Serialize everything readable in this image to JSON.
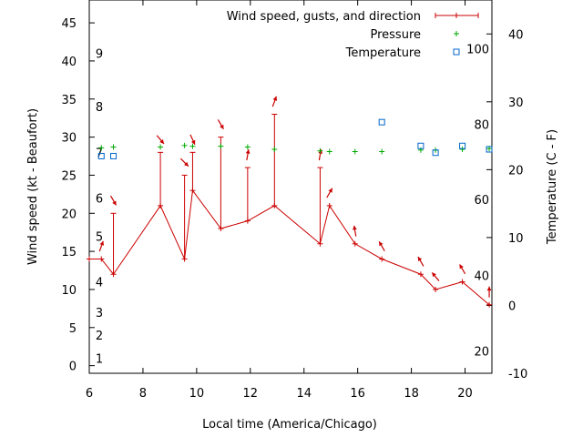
{
  "chart_data": {
    "type": "line",
    "xlabel": "Local time (America/Chicago)",
    "ylabel_left": "Wind speed (kt - Beaufort)",
    "ylabel_right": "Temperature (C - F)",
    "x_range": [
      6,
      21
    ],
    "x_ticks": [
      "6",
      "8",
      "10",
      "12",
      "14",
      "16",
      "18",
      "20"
    ],
    "y_left_range": [
      -1,
      48
    ],
    "y_left_ticks": [
      "0",
      "5",
      "10",
      "15",
      "20",
      "25",
      "30",
      "35",
      "40",
      "45"
    ],
    "y_right_range": [
      -10,
      45
    ],
    "y_right_ticks": [
      "-10",
      "0",
      "10",
      "20",
      "30",
      "40"
    ],
    "beaufort_labels": [
      {
        "label": "1",
        "y": 1
      },
      {
        "label": "2",
        "y": 4
      },
      {
        "label": "3",
        "y": 7
      },
      {
        "label": "4",
        "y": 11
      },
      {
        "label": "5",
        "y": 17
      },
      {
        "label": "6",
        "y": 22
      },
      {
        "label": "7",
        "y": 28
      },
      {
        "label": "8",
        "y": 34
      },
      {
        "label": "9",
        "y": 41
      }
    ],
    "fahrenheit_labels": [
      {
        "label": "20",
        "c": -6.7
      },
      {
        "label": "40",
        "c": 4.4
      },
      {
        "label": "60",
        "c": 15.6
      },
      {
        "label": "80",
        "c": 26.7
      },
      {
        "label": "100",
        "c": 37.8
      }
    ],
    "legend": [
      {
        "label": "Wind speed, gusts, and direction",
        "color": "#cc0000"
      },
      {
        "label": "Pressure",
        "color": "#00aa00"
      },
      {
        "label": "Temperature",
        "color": "#0066cc"
      }
    ],
    "series": [
      {
        "name": "Wind speed, gusts, and direction",
        "color": "#cc0000",
        "points": [
          {
            "x": 6.0,
            "y": 14
          },
          {
            "x": 6.45,
            "y": 14,
            "gust": null,
            "dir": 200
          },
          {
            "x": 6.9,
            "y": 12,
            "gust": 20,
            "dir": 330
          },
          {
            "x": 8.65,
            "y": 21,
            "gust": 28,
            "dir": 320
          },
          {
            "x": 9.55,
            "y": 14,
            "gust": 25,
            "dir": 315
          },
          {
            "x": 9.85,
            "y": 23,
            "gust": 28,
            "dir": 335
          },
          {
            "x": 10.9,
            "y": 18,
            "gust": 30,
            "dir": 330
          },
          {
            "x": 11.9,
            "y": 19,
            "gust": 26,
            "dir": 190
          },
          {
            "x": 12.9,
            "y": 21,
            "gust": 33,
            "dir": 200
          },
          {
            "x": 14.6,
            "y": 16,
            "gust": 26,
            "dir": 190
          },
          {
            "x": 14.95,
            "y": 21,
            "gust": null,
            "dir": 210
          },
          {
            "x": 15.9,
            "y": 16,
            "gust": null,
            "dir": 170
          },
          {
            "x": 16.9,
            "y": 14,
            "gust": null,
            "dir": 150
          },
          {
            "x": 18.35,
            "y": 12,
            "gust": null,
            "dir": 150
          },
          {
            "x": 18.9,
            "y": 10,
            "gust": null,
            "dir": 140
          },
          {
            "x": 19.9,
            "y": 11,
            "gust": null,
            "dir": 150
          },
          {
            "x": 20.9,
            "y": 8,
            "gust": null,
            "dir": 180
          }
        ]
      },
      {
        "name": "Pressure",
        "color": "#00aa00",
        "points": [
          {
            "x": 6.45,
            "y": 28.6
          },
          {
            "x": 6.9,
            "y": 28.7
          },
          {
            "x": 8.65,
            "y": 28.7
          },
          {
            "x": 9.55,
            "y": 28.9
          },
          {
            "x": 9.85,
            "y": 28.8
          },
          {
            "x": 10.9,
            "y": 28.8
          },
          {
            "x": 11.9,
            "y": 28.7
          },
          {
            "x": 12.9,
            "y": 28.4
          },
          {
            "x": 14.6,
            "y": 28.2
          },
          {
            "x": 14.95,
            "y": 28.1
          },
          {
            "x": 15.9,
            "y": 28.1
          },
          {
            "x": 16.9,
            "y": 28.1
          },
          {
            "x": 18.35,
            "y": 28.3
          },
          {
            "x": 18.9,
            "y": 28.3
          },
          {
            "x": 19.9,
            "y": 28.4
          },
          {
            "x": 20.9,
            "y": 28.5
          }
        ]
      },
      {
        "name": "Temperature",
        "color": "#0066cc",
        "points": [
          {
            "x": 6.45,
            "y": 22
          },
          {
            "x": 6.9,
            "y": 22
          },
          {
            "x": 16.9,
            "y": 27
          },
          {
            "x": 18.35,
            "y": 23.5
          },
          {
            "x": 18.9,
            "y": 22.5
          },
          {
            "x": 19.9,
            "y": 23.5
          },
          {
            "x": 20.9,
            "y": 23
          }
        ]
      }
    ]
  }
}
